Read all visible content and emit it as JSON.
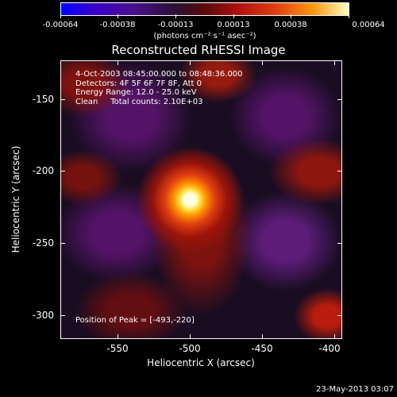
{
  "colorbar": {
    "tick_labels": [
      "-0.00064",
      "-0.00038",
      "-0.00013",
      "0.00013",
      "0.00038",
      "0.00064"
    ],
    "unit_label": "(photons cm⁻² s⁻¹ asec⁻²)"
  },
  "title": "Reconstructed RHESSI Image",
  "info": {
    "line1": "4-Oct-2003 08:45:00.000 to 08:48:36.000",
    "line2": "Detectors: 4F 5F 6F 7F 8F, Att 0",
    "line3": "Energy Range: 12.0 - 25.0 keV",
    "line4": "Clean     Total counts: 2.10E+03"
  },
  "peak_label": "Position of Peak = [-493,-220]",
  "axes": {
    "x_label": "Heliocentric X (arcsec)",
    "y_label": "Heliocentric Y (arcsec)",
    "x_ticks": [
      "-550",
      "-500",
      "-450",
      "-400"
    ],
    "y_ticks": [
      "-150",
      "-200",
      "-250",
      "-300"
    ]
  },
  "timestamp": "23-May-2013 03:07",
  "chart_data": {
    "type": "heatmap",
    "title": "Reconstructed RHESSI Image",
    "xlabel": "Heliocentric X (arcsec)",
    "ylabel": "Heliocentric Y (arcsec)",
    "xlim": [
      -587,
      -395
    ],
    "ylim": [
      -318,
      -128
    ],
    "peak": {
      "x": -493,
      "y": -220
    },
    "colorbar_range": [
      -0.00064,
      0.00064
    ],
    "colors": {
      "low": "#0000ff",
      "mid": "#000000",
      "high": "#ffffe0"
    }
  }
}
